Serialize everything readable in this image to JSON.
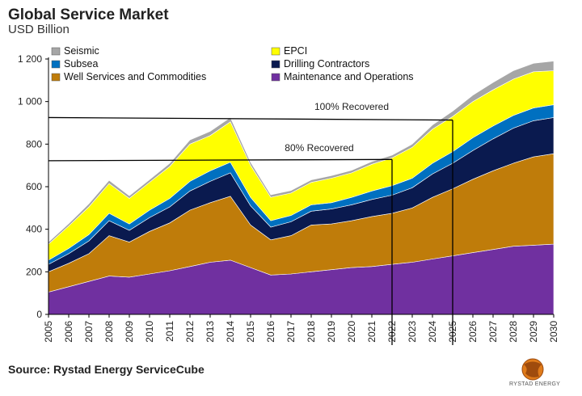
{
  "header": {
    "title": "Global Service Market",
    "subtitle": "USD Billion"
  },
  "footer": {
    "source": "Source: Rystad Energy ServiceCube",
    "brand": "RYSTAD ENERGY"
  },
  "chart_data": {
    "type": "area",
    "stacked": true,
    "title": "Global Service Market",
    "ylabel": "USD Billion",
    "xlabel": "",
    "ylim": [
      0,
      1200
    ],
    "yticks": [
      0,
      200,
      400,
      600,
      800,
      1000,
      1200
    ],
    "ytick_labels": [
      "0",
      "200",
      "400",
      "600",
      "800",
      "1 000",
      "1 200"
    ],
    "grid": false,
    "legend_position": "top",
    "categories": [
      "2005",
      "2006",
      "2007",
      "2008",
      "2009",
      "2010",
      "2011",
      "2012",
      "2013",
      "2014",
      "2015",
      "2016",
      "2017",
      "2018",
      "2019",
      "2020",
      "2021",
      "2022",
      "2023",
      "2024",
      "2025",
      "2026",
      "2027",
      "2028",
      "2029",
      "2030"
    ],
    "series": [
      {
        "name": "Maintenance and Operations",
        "color": "#7030a0",
        "values": [
          105,
          130,
          155,
          180,
          175,
          190,
          205,
          225,
          245,
          255,
          220,
          185,
          190,
          200,
          210,
          220,
          225,
          235,
          245,
          260,
          275,
          290,
          305,
          320,
          325,
          330
        ]
      },
      {
        "name": "Well Services and Commodities",
        "color": "#bf7c0a",
        "values": [
          95,
          110,
          130,
          190,
          165,
          200,
          225,
          265,
          280,
          300,
          200,
          165,
          180,
          220,
          215,
          220,
          235,
          240,
          255,
          290,
          315,
          345,
          370,
          390,
          415,
          425
        ]
      },
      {
        "name": "Drilling Contractors",
        "color": "#0a1a4f",
        "values": [
          35,
          45,
          60,
          70,
          55,
          65,
          75,
          90,
          100,
          110,
          90,
          60,
          65,
          65,
          70,
          75,
          80,
          85,
          95,
          110,
          120,
          135,
          150,
          165,
          170,
          170
        ]
      },
      {
        "name": "Subsea",
        "color": "#0070c0",
        "values": [
          20,
          25,
          30,
          35,
          30,
          35,
          40,
          45,
          50,
          50,
          40,
          30,
          30,
          30,
          30,
          35,
          40,
          45,
          45,
          50,
          55,
          60,
          60,
          60,
          60,
          60
        ]
      },
      {
        "name": "EPCI",
        "color": "#ffff00",
        "values": [
          75,
          105,
          130,
          140,
          120,
          130,
          150,
          175,
          165,
          190,
          150,
          110,
          105,
          105,
          115,
          115,
          125,
          130,
          145,
          160,
          165,
          170,
          170,
          170,
          170,
          160
        ]
      },
      {
        "name": "Seismic",
        "color": "#a6a6a6",
        "values": [
          10,
          12,
          15,
          15,
          12,
          13,
          15,
          20,
          20,
          20,
          15,
          12,
          12,
          12,
          12,
          12,
          13,
          13,
          15,
          20,
          25,
          30,
          35,
          40,
          40,
          45
        ]
      }
    ],
    "legend": [
      [
        "Seismic",
        "EPCI"
      ],
      [
        "Subsea",
        "Drilling Contractors"
      ],
      [
        "Well Services and Commodities",
        "Maintenance and Operations"
      ]
    ],
    "annotations": {
      "lines": [
        {
          "label": "100% Recovered",
          "y_start": 925,
          "y_end": 913,
          "x_start": "2005",
          "x_end": "2025"
        },
        {
          "label": "80% Recovered",
          "y_start": 722,
          "y_end": 728,
          "x_start": "2005",
          "x_end": "2022"
        }
      ],
      "vlines": [
        "2022",
        "2025"
      ]
    }
  }
}
